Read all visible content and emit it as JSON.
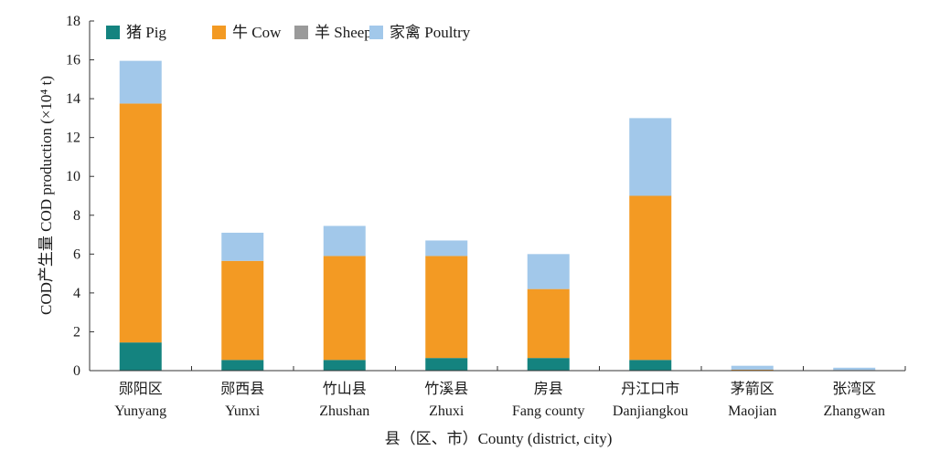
{
  "chart_data": {
    "type": "bar",
    "stacked": true,
    "categories": [
      {
        "cn": "郧阳区",
        "en": "Yunyang"
      },
      {
        "cn": "郧西县",
        "en": "Yunxi"
      },
      {
        "cn": "竹山县",
        "en": "Zhushan"
      },
      {
        "cn": "竹溪县",
        "en": "Zhuxi"
      },
      {
        "cn": "房县",
        "en": "Fang county"
      },
      {
        "cn": "丹江口市",
        "en": "Danjiangkou"
      },
      {
        "cn": "茅箭区",
        "en": "Maojian"
      },
      {
        "cn": "张湾区",
        "en": "Zhangwan"
      }
    ],
    "series": [
      {
        "name": "猪 Pig",
        "color": "#14837f",
        "values": [
          1.45,
          0.55,
          0.55,
          0.65,
          0.65,
          0.55,
          0.03,
          0.02
        ]
      },
      {
        "name": "牛 Cow",
        "color": "#f39a23",
        "values": [
          12.3,
          5.1,
          5.35,
          5.25,
          3.55,
          8.45,
          0.02,
          0.01
        ]
      },
      {
        "name": "羊 Sheep",
        "color": "#9a9a9a",
        "values": [
          0,
          0,
          0,
          0,
          0,
          0,
          0,
          0
        ]
      },
      {
        "name": "家禽 Poultry",
        "color": "#a2c8ea",
        "values": [
          2.2,
          1.45,
          1.55,
          0.8,
          1.8,
          4.0,
          0.2,
          0.12
        ]
      }
    ],
    "xlabel": "县（区、市）County (district, city)",
    "ylabel": "COD产生量 COD production (×10⁴ t)",
    "ylim": [
      0,
      18
    ],
    "yticks": [
      0,
      2,
      4,
      6,
      8,
      10,
      12,
      14,
      16,
      18
    ],
    "legend": "top-left",
    "grid": false
  }
}
